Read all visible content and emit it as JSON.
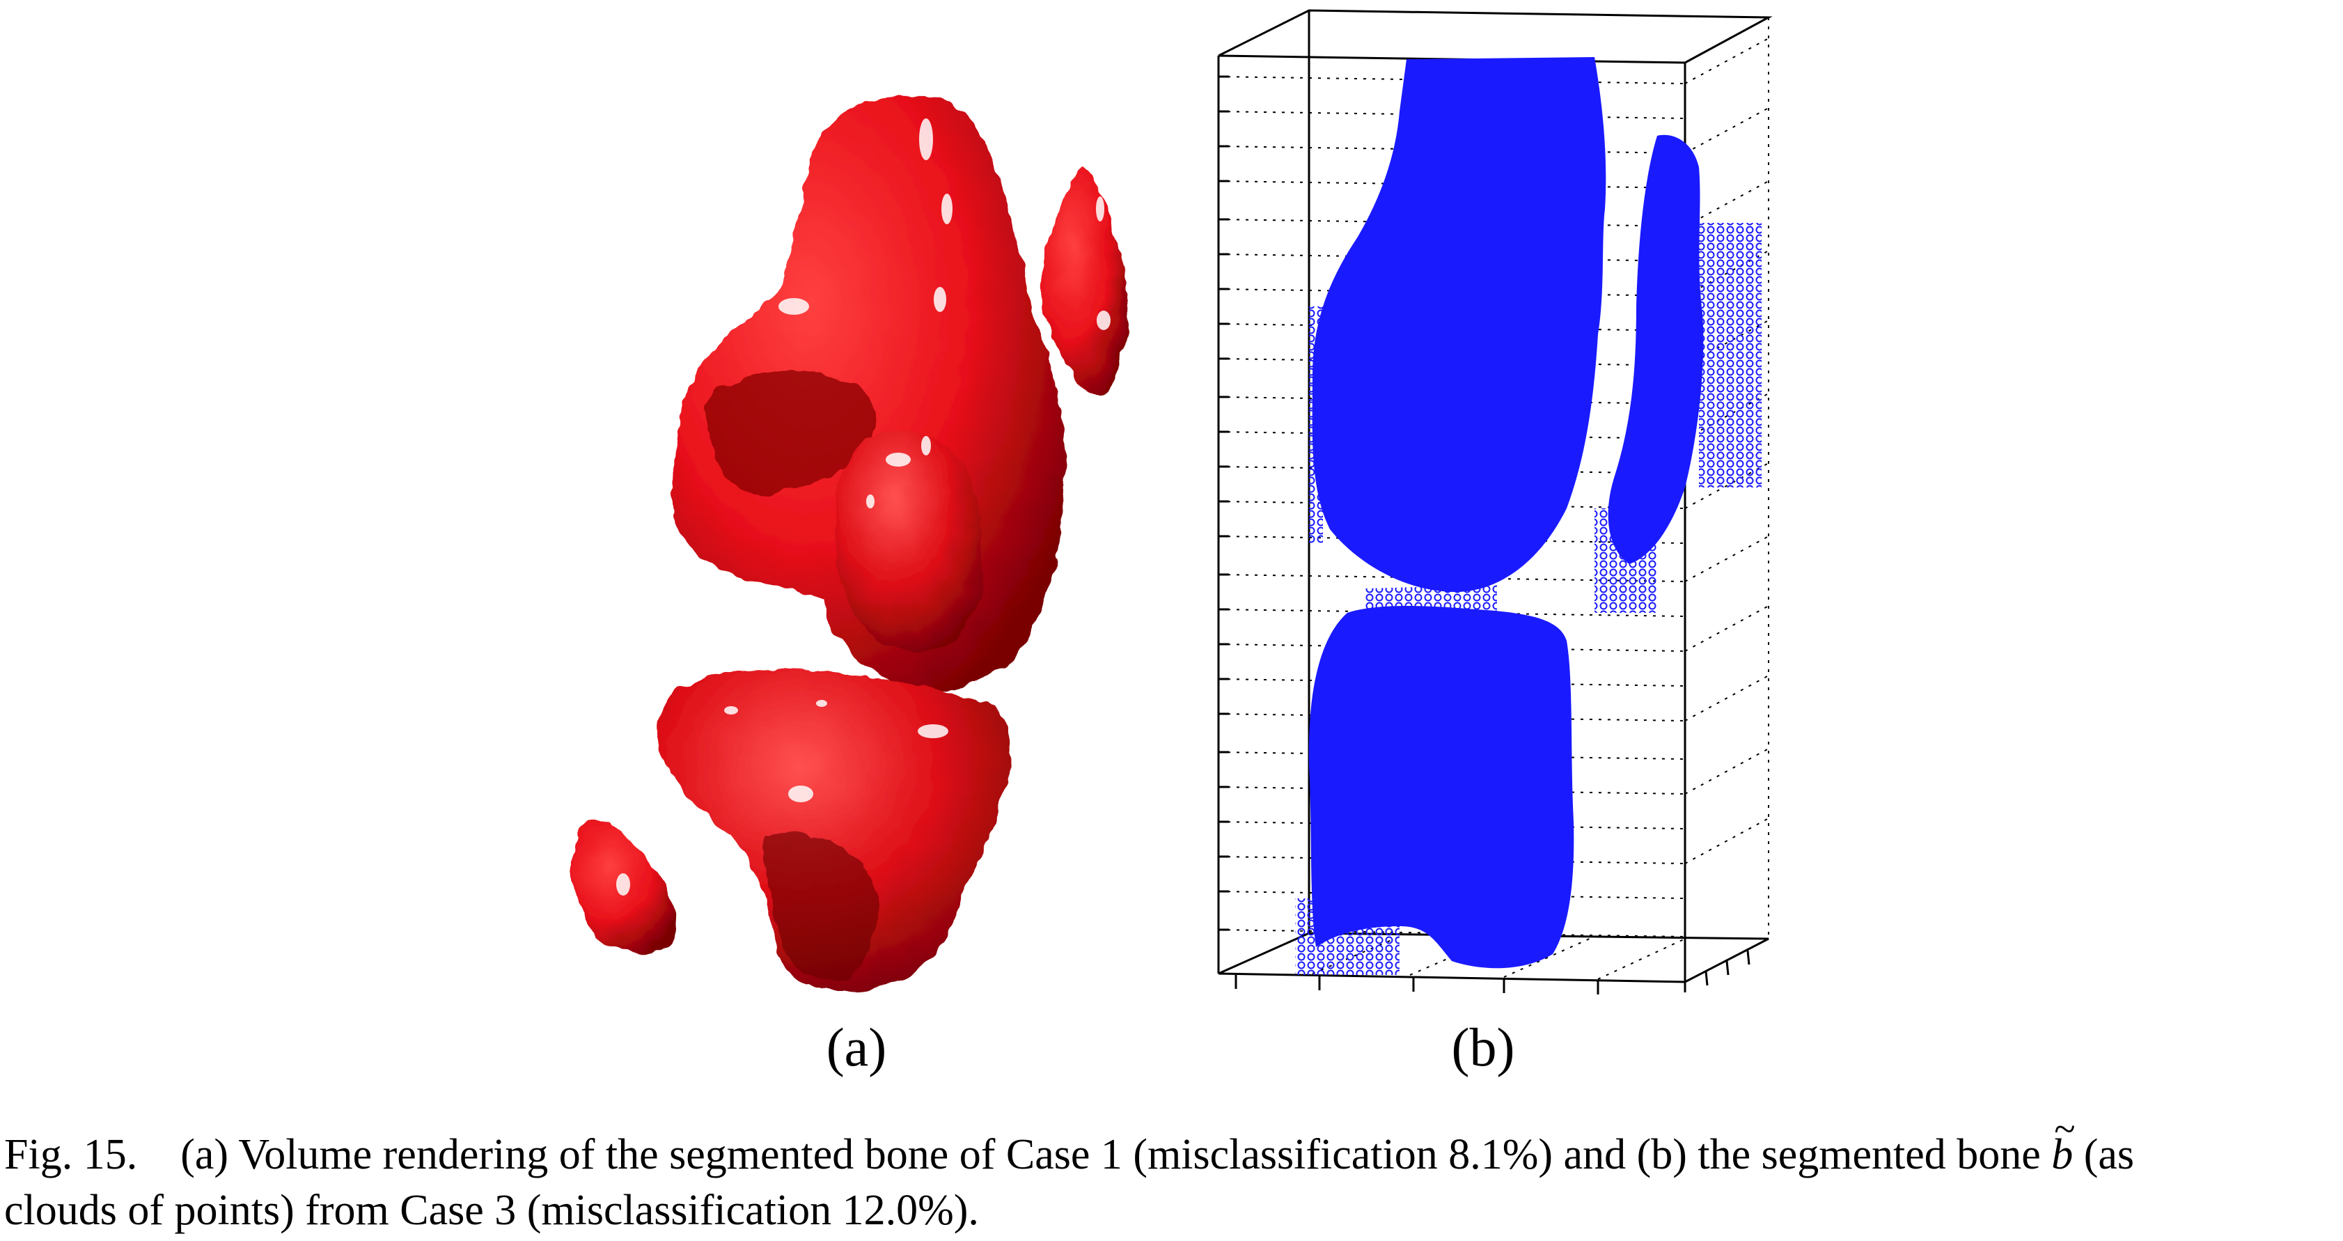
{
  "figure": {
    "panel_a": {
      "label": "(a)",
      "colors": {
        "bone": "#e8101a",
        "shade": "#8a0005",
        "highlight": "#ffffff"
      }
    },
    "panel_b": {
      "label": "(b)",
      "colors": {
        "points": "#1a1aff",
        "axes": "#000000"
      }
    }
  },
  "caption": {
    "prefix": "Fig. 15.",
    "text_line1": "(a) Volume rendering of the segmented bone of Case 1 (misclassification 8.1%) and (b) the segmented bone",
    "symbol": "b",
    "text_line1_end": "(as",
    "text_line2": "clouds of points) from Case 3 (misclassification 12.0%)."
  }
}
